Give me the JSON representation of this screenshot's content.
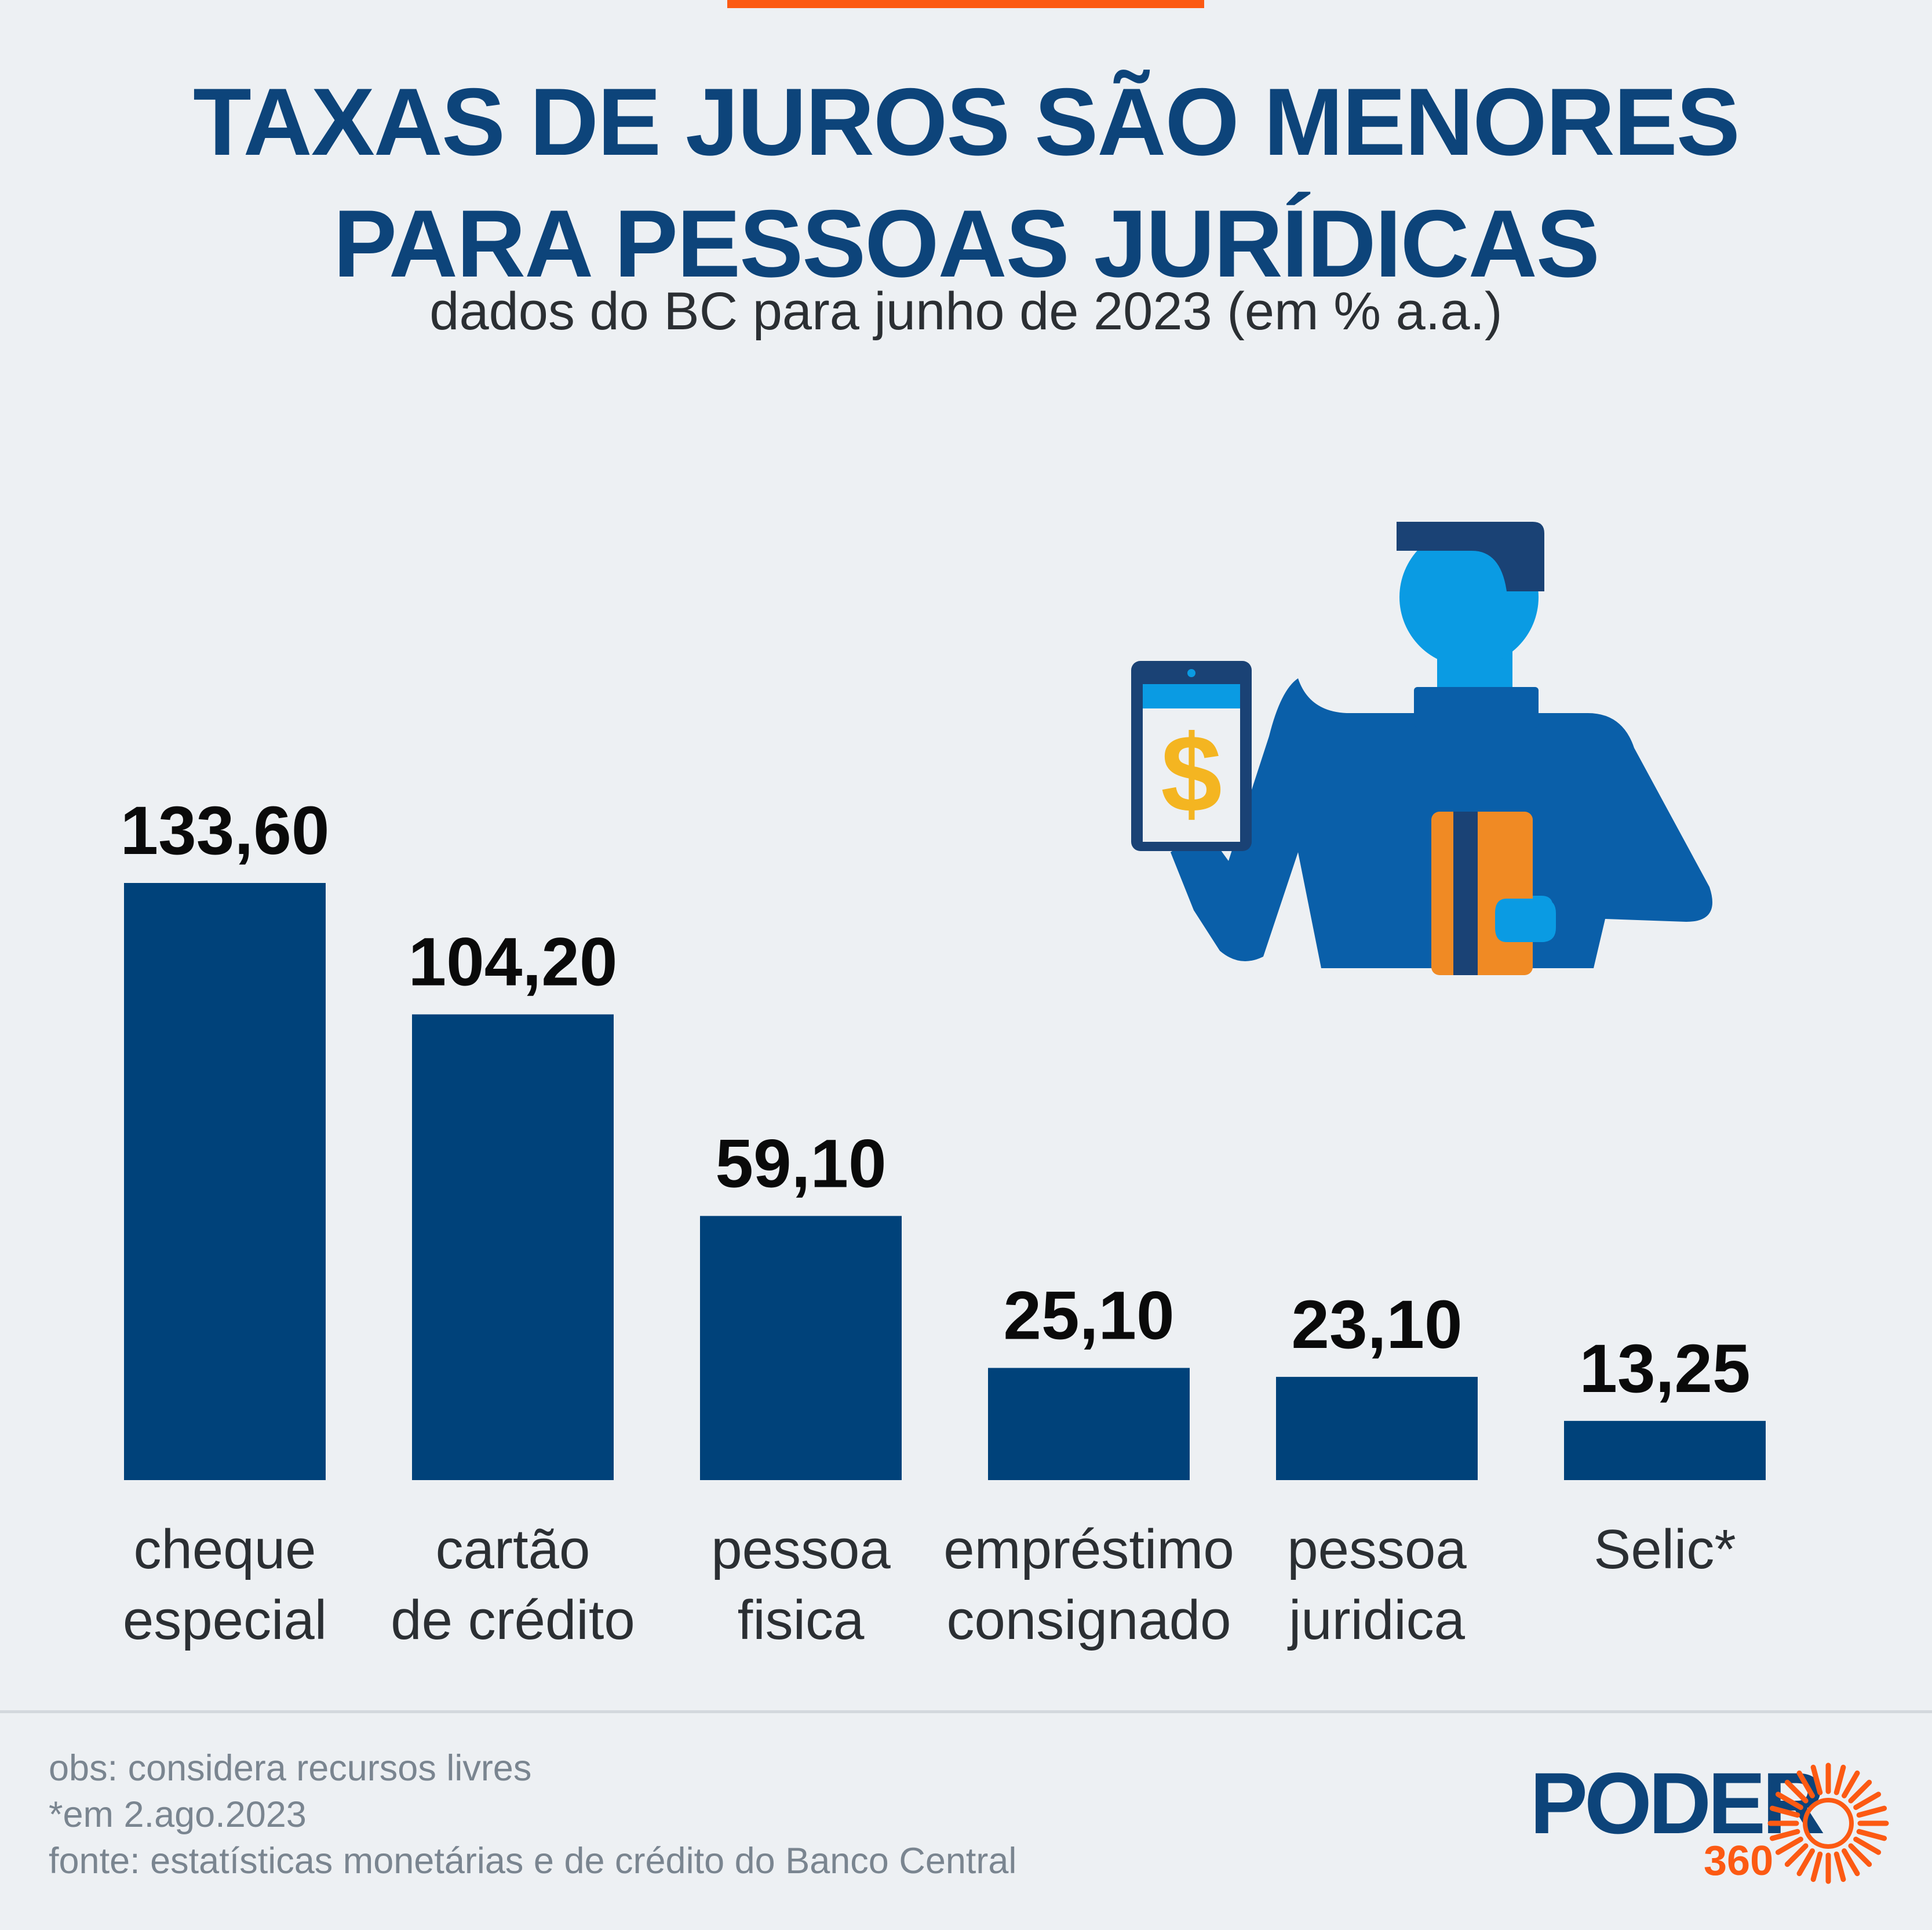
{
  "colors": {
    "background": "#edf0f3",
    "title": "#0d447a",
    "subtitle": "#2b2f33",
    "bar": "#00427a",
    "value_label": "#0a0a0a",
    "category_label": "#2b2f33",
    "accent": "#fc5a13",
    "footnote": "#7a8590",
    "divider": "#d3d8dd"
  },
  "header": {
    "title_line1": "TAXAS DE JUROS SÃO MENORES",
    "title_line2": "PARA PESSOAS JURÍDICAS",
    "subtitle": "dados do BC para junho de 2023 (em % a.a.)"
  },
  "chart_data": {
    "type": "bar",
    "title": "TAXAS DE JUROS SÃO MENORES PARA PESSOAS JURÍDICAS",
    "subtitle": "dados do BC para junho de 2023 (em % a.a.)",
    "categories": [
      [
        "cheque",
        "especial"
      ],
      [
        "cartão",
        "de crédito"
      ],
      [
        "pessoa",
        "fisica"
      ],
      [
        "empréstimo",
        "consignado"
      ],
      [
        "pessoa",
        "juridica"
      ],
      [
        "Selic*"
      ]
    ],
    "values": [
      133.6,
      104.2,
      59.1,
      25.1,
      23.1,
      13.25
    ],
    "value_labels": [
      "133,60",
      "104,20",
      "59,10",
      "25,10",
      "23,10",
      "13,25"
    ],
    "xlabel": "",
    "ylabel": "",
    "ylim": [
      0,
      133.6
    ],
    "grid": false,
    "legend": "none"
  },
  "illustration": {
    "icons": [
      "person-icon",
      "tablet-icon",
      "dollar-icon",
      "credit-card-icon"
    ],
    "dollar_symbol": "$"
  },
  "footer": {
    "notes": [
      "obs: considera recursos livres",
      "*em 2.ago.2023",
      "fonte: estatísticas monetárias e de crédito do Banco Central"
    ],
    "logo_word": "PODER",
    "logo_number": "360"
  }
}
